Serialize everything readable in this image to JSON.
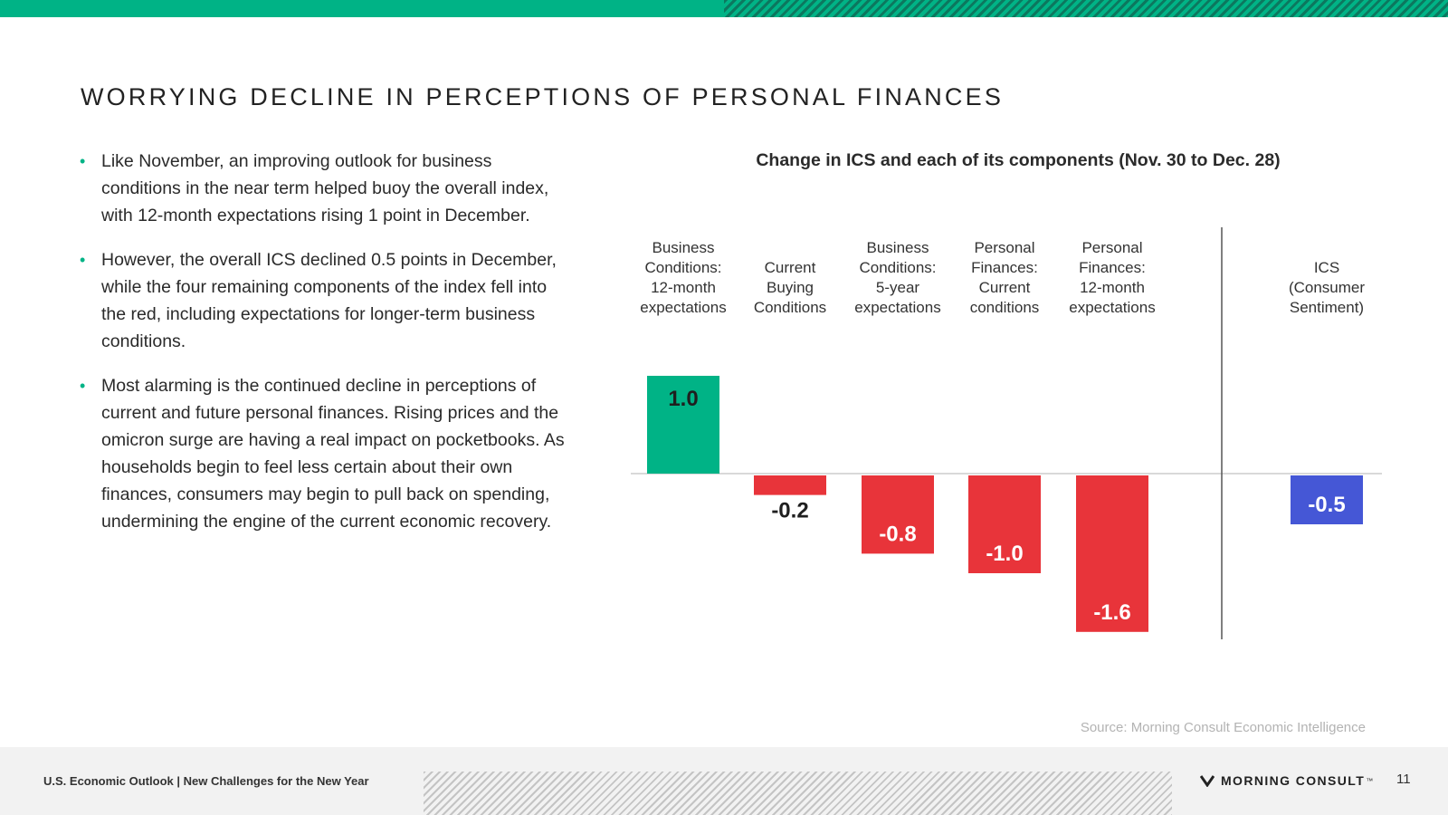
{
  "slide": {
    "title": "WORRYING DECLINE IN PERCEPTIONS OF PERSONAL FINANCES",
    "bullets": [
      "Like November, an improving outlook for business conditions in the near term helped buoy the overall index, with 12-month expectations rising 1 point in December.",
      "However, the overall ICS declined 0.5 points in December, while the four remaining components of the index fell into the red, including expectations for longer-term business conditions.",
      "Most alarming is the continued decline in perceptions of current and future personal finances. Rising prices and the omicron surge are having a real impact on pocketbooks. As households begin to feel less certain about their own finances, consumers may begin to pull back on spending, undermining the engine of the current economic recovery."
    ],
    "source": "Source: Morning Consult Economic Intelligence"
  },
  "footer": {
    "report_title": "U.S. Economic Outlook | New Challenges for the New Year",
    "brand": "MORNING CONSULT",
    "brand_mark": "™",
    "page_number": "11"
  },
  "colors": {
    "accent": "#00b386",
    "positive": "#00b386",
    "negative": "#e8343a",
    "ics": "#4557d6"
  },
  "icons": {
    "brand_logo": "morning-consult-m-logo"
  },
  "chart_data": {
    "type": "bar",
    "title": "Change in ICS and each of its components (Nov. 30 to Dec. 28)",
    "categories": [
      [
        "Business",
        "Conditions:",
        "12-month",
        "expectations"
      ],
      [
        "Current",
        "Buying",
        "Conditions"
      ],
      [
        "Business",
        "Conditions:",
        "5-year",
        "expectations"
      ],
      [
        "Personal",
        "Finances:",
        "Current",
        "conditions"
      ],
      [
        "Personal",
        "Finances:",
        "12-month",
        "expectations"
      ],
      [
        "ICS",
        "(Consumer",
        "Sentiment)"
      ]
    ],
    "values": [
      1.0,
      -0.2,
      -0.8,
      -1.0,
      -1.6,
      -0.5
    ],
    "value_labels": [
      "1.0",
      "-0.2",
      "-0.8",
      "-1.0",
      "-1.6",
      "-0.5"
    ],
    "bar_colors": [
      "#00b386",
      "#e8343a",
      "#e8343a",
      "#e8343a",
      "#e8343a",
      "#4557d6"
    ],
    "ylim": [
      -1.6,
      1.0
    ],
    "separator_before_last": true,
    "grid": false,
    "legend": "none"
  }
}
